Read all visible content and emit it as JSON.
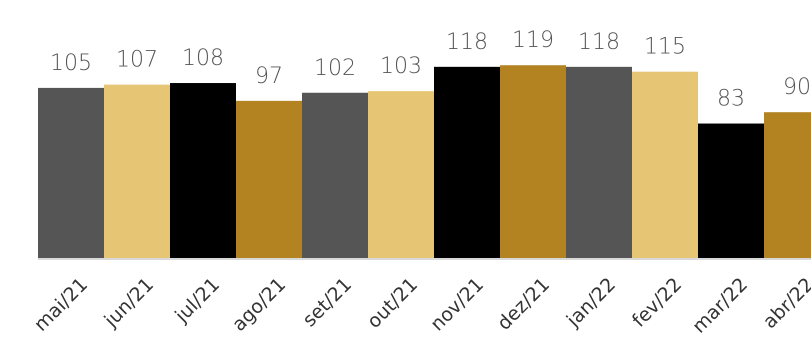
{
  "chart_data": {
    "type": "bar",
    "categories": [
      "mai/21",
      "jun/21",
      "jul/21",
      "ago/21",
      "set/21",
      "out/21",
      "nov/21",
      "dez/21",
      "jan/22",
      "fev/22",
      "mar/22",
      "abr/22"
    ],
    "values": [
      105,
      107,
      108,
      97,
      102,
      103,
      118,
      119,
      118,
      115,
      83,
      90
    ],
    "data_labels": [
      "105",
      "107",
      "108",
      "97",
      "102",
      "103",
      "118",
      "119",
      "118",
      "115",
      "83",
      "90"
    ],
    "bar_colors": [
      "#555555",
      "#e6c574",
      "#000000",
      "#b38322",
      "#555555",
      "#e6c574",
      "#000000",
      "#b38322",
      "#555555",
      "#e6c574",
      "#000000",
      "#b38322"
    ],
    "ylim": [
      0,
      119
    ],
    "grid": false,
    "legend": "none",
    "title": "",
    "xlabel": "",
    "ylabel": ""
  }
}
